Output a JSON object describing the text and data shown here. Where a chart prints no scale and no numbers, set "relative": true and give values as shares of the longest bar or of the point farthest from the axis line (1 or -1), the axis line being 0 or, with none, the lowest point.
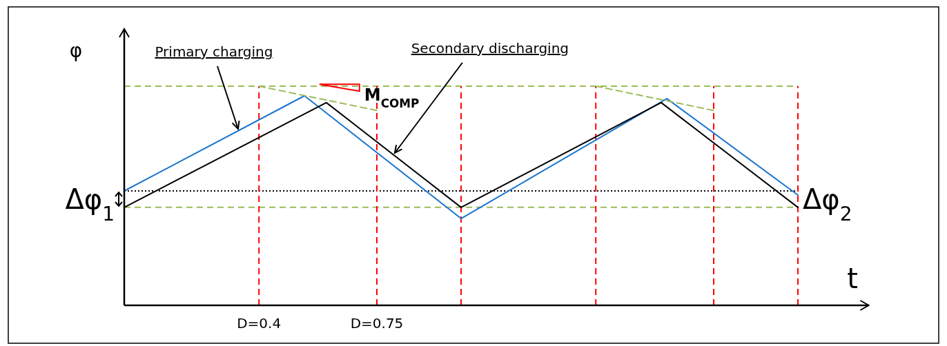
{
  "chart_data": {
    "type": "line",
    "relative": true,
    "xlabel": "t",
    "ylabel": "φ",
    "xlim": [
      0,
      2.21
    ],
    "xticks": [
      {
        "value": 0.4,
        "label": "D=0.4"
      },
      {
        "value": 0.75,
        "label": "D=0.75"
      }
    ],
    "tick_labels": "x",
    "series": [
      {
        "color": "#1a75cf",
        "x": [
          0,
          0.535,
          1,
          1.611,
          2
        ],
        "values": [
          0.522,
          0.956,
          0.396,
          0.943,
          0.503
        ]
      },
      {
        "color": "#000000",
        "x": [
          0,
          0.6,
          1,
          1.594,
          2
        ],
        "values": [
          0.447,
          0.925,
          0.447,
          0.925,
          0.447
        ]
      },
      {
        "color": "#9bbb59",
        "line_style": "dashed",
        "x": [
          0.4,
          0.75
        ],
        "values": [
          1,
          0.889
        ]
      },
      {
        "color": "#9bbb59",
        "line_style": "dashed",
        "x": [
          1.4,
          1.75
        ],
        "values": [
          1,
          0.889
        ]
      }
    ],
    "ref_lines": [
      {
        "axis": "y",
        "value": 1,
        "color": "#9bbb59",
        "line_style": "dashed"
      },
      {
        "axis": "y",
        "value": 0.447,
        "color": "#9bbb59",
        "line_style": "dashed"
      },
      {
        "axis": "y",
        "value": 0.522,
        "color": "#000000",
        "line_style": "dotted"
      },
      {
        "axis": "x",
        "value": 0.4,
        "color": "#ff0000",
        "line_style": "dashed"
      },
      {
        "axis": "x",
        "value": 0.75,
        "color": "#ff0000",
        "line_style": "dashed"
      },
      {
        "axis": "x",
        "value": 1,
        "color": "#ff0000",
        "line_style": "dashed"
      },
      {
        "axis": "x",
        "value": 1.4,
        "color": "#ff0000",
        "line_style": "dashed"
      },
      {
        "axis": "x",
        "value": 1.75,
        "color": "#ff0000",
        "line_style": "dashed"
      },
      {
        "axis": "x",
        "value": 2,
        "color": "#ff0000",
        "line_style": "dashed"
      }
    ],
    "annotations": [
      {
        "text": "Primary charging",
        "x": 0.338,
        "y": 0.805
      },
      {
        "text": "Secondary discharging",
        "x": 0.803,
        "y": 0.695
      },
      {
        "text": "M$_{COMP}$",
        "x": 0.6,
        "y": 0.93
      },
      "Δφ$_{1}$",
      "Δφ$_{2}$"
    ]
  }
}
